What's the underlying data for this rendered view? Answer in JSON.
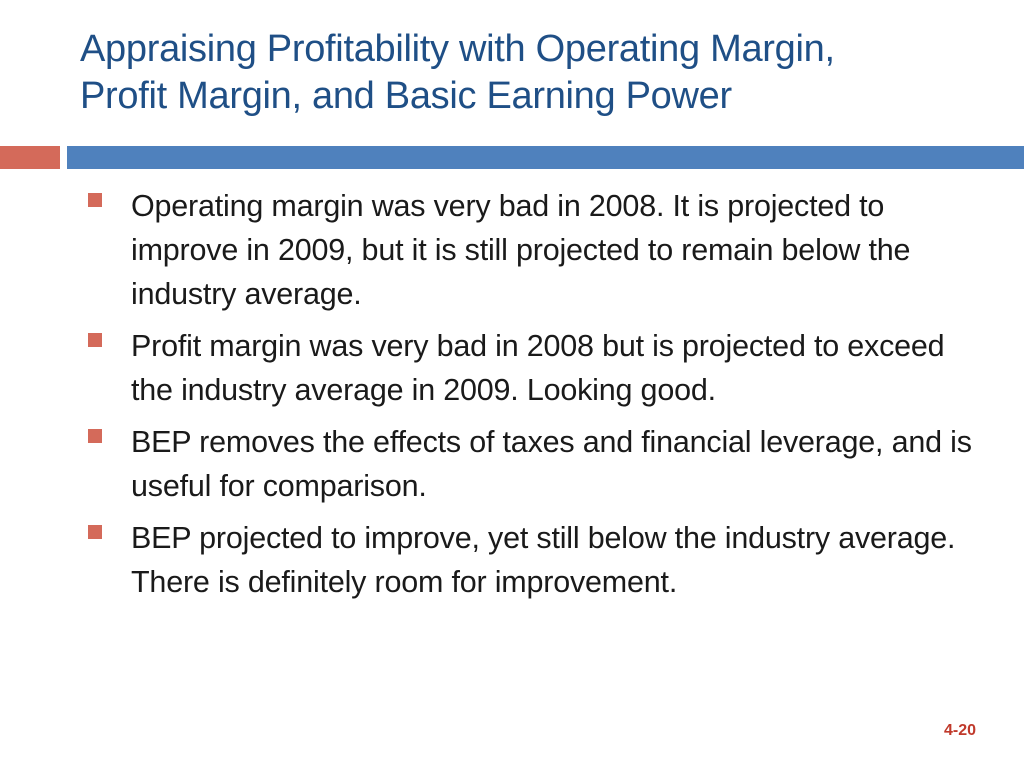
{
  "slide": {
    "title_lines": [
      "Appraising Profitability with Operating Margin,",
      "Profit Margin, and Basic Earning Power"
    ],
    "bullets": [
      "Operating margin was very bad in 2008.  It is projected to improve in 2009, but it is still projected to remain below the industry average.",
      "Profit margin was very bad in 2008 but is projected to exceed the industry average in 2009.  Looking good.",
      "BEP removes the effects of taxes and financial leverage, and is useful for comparison.",
      "BEP projected to improve, yet still below the industry average.  There is definitely room for improvement."
    ],
    "page_number": "4-20"
  },
  "colors": {
    "title": "#1f4f86",
    "accent_red": "#d46a5a",
    "accent_blue": "#4f81bd",
    "page_number": "#c0392b"
  }
}
